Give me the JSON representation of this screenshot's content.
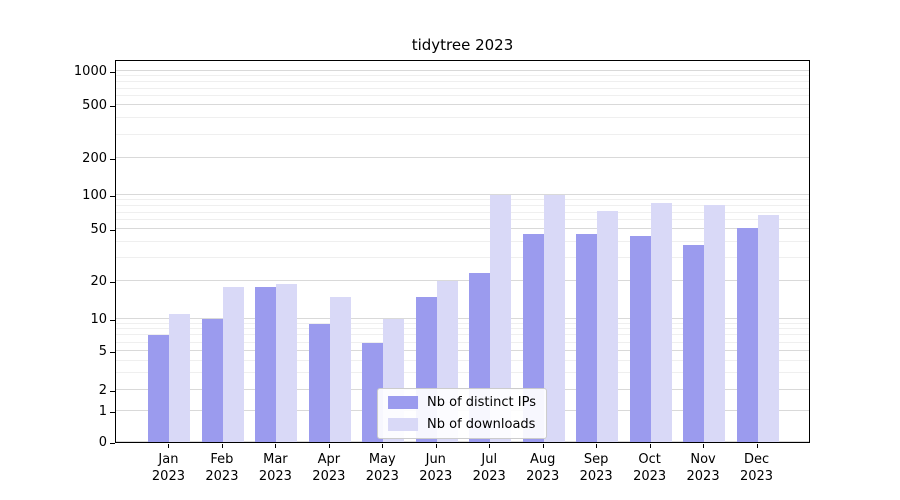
{
  "chart_data": {
    "type": "bar",
    "title": "tidytree 2023",
    "yscale": "symlog",
    "grid": true,
    "legend_position": "lower center",
    "y_ticks": [
      0,
      1,
      2,
      5,
      10,
      20,
      50,
      100,
      200,
      500,
      1000
    ],
    "ylim": [
      0,
      1300
    ],
    "categories": [
      "Jan 2023",
      "Feb 2023",
      "Mar 2023",
      "Apr 2023",
      "May 2023",
      "Jun 2023",
      "Jul 2023",
      "Aug 2023",
      "Sep 2023",
      "Oct 2023",
      "Nov 2023",
      "Dec 2023"
    ],
    "series": [
      {
        "name": "Nb of distinct IPs",
        "color": "#9b9bee",
        "values": [
          7,
          10,
          18,
          9,
          6,
          15,
          23,
          46,
          46,
          44,
          38,
          51
        ]
      },
      {
        "name": "Nb of downloads",
        "color": "#d9d9f7",
        "values": [
          11,
          18,
          19,
          15,
          10,
          20,
          100,
          100,
          72,
          85,
          82,
          66
        ]
      }
    ]
  },
  "colors": {
    "grid_major": "#d9d9d9",
    "grid_minor": "#efefef",
    "axis": "#000000",
    "legend_border": "#cccccc"
  }
}
